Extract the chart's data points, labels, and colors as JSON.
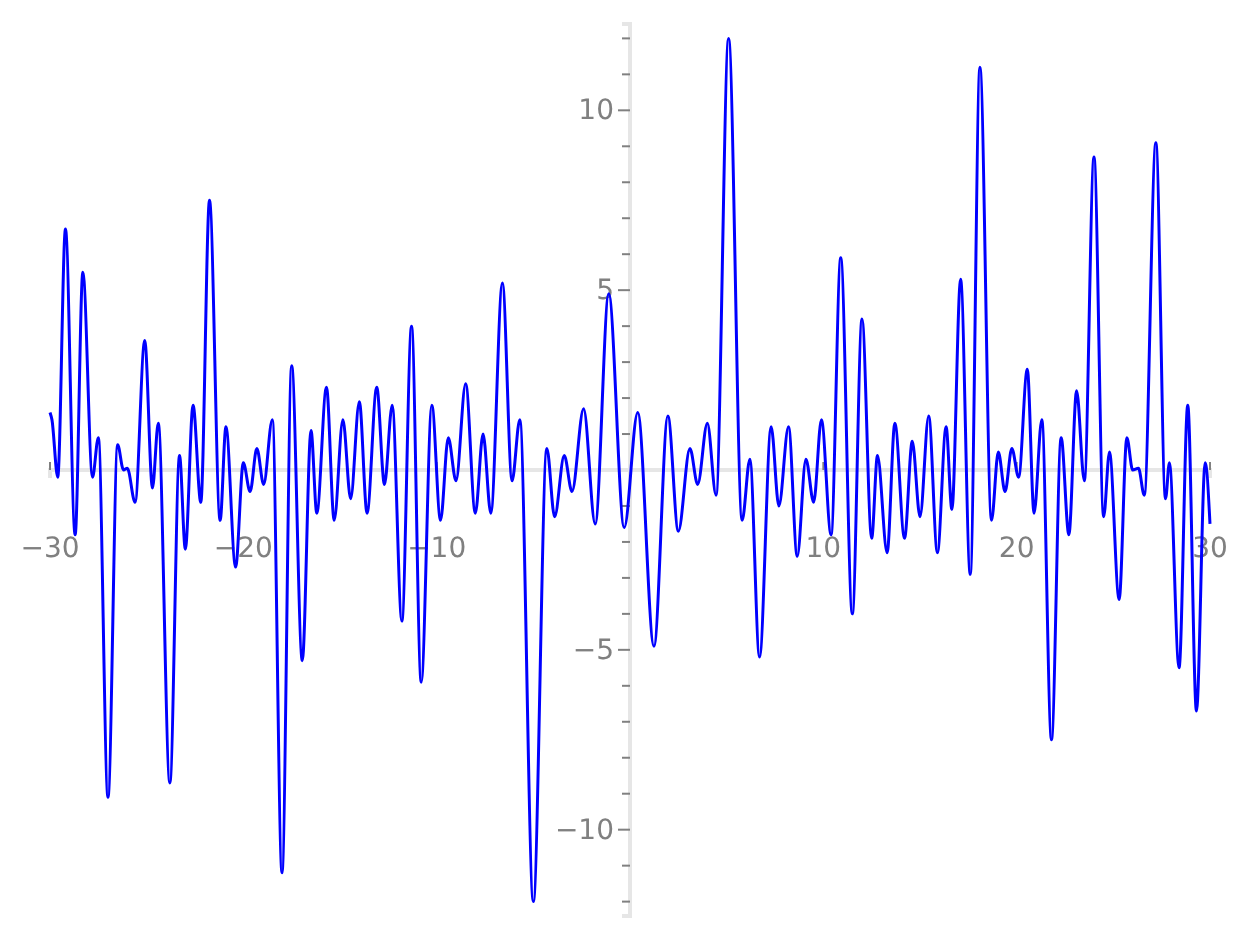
{
  "chart_data": {
    "type": "line",
    "x": [
      -30,
      -29.9,
      -29.6,
      -29.2,
      -28.7,
      -28.3,
      -27.8,
      -27.5,
      -27.0,
      -26.5,
      -26.2,
      -26.0,
      -25.6,
      -25.1,
      -24.7,
      -24.4,
      -23.8,
      -23.3,
      -23.0,
      -22.6,
      -22.2,
      -21.75,
      -21.2,
      -20.9,
      -20.4,
      -20.0,
      -19.65,
      -19.3,
      -18.95,
      -18.5,
      -18.0,
      -17.5,
      -16.95,
      -16.5,
      -16.2,
      -15.7,
      -15.3,
      -14.85,
      -14.45,
      -14.0,
      -13.6,
      -13.1,
      -12.7,
      -12.3,
      -11.8,
      -11.3,
      -10.8,
      -10.25,
      -9.8,
      -9.4,
      -9.0,
      -8.5,
      -8.0,
      -7.6,
      -7.2,
      -6.6,
      -6.1,
      -5.7,
      -5.0,
      -4.3,
      -3.9,
      -3.4,
      -3.0,
      -2.4,
      -1.8,
      -1.1,
      -0.3,
      0.4,
      1.24,
      1.96,
      2.5,
      3.1,
      3.5,
      4.0,
      4.45,
      5.1,
      5.8,
      6.2,
      6.7,
      7.3,
      7.7,
      8.2,
      8.65,
      9.1,
      9.5,
      9.9,
      10.4,
      10.9,
      11.5,
      12.0,
      12.5,
      12.8,
      13.3,
      13.7,
      14.2,
      14.6,
      15.0,
      15.45,
      15.9,
      16.35,
      16.65,
      17.1,
      17.6,
      18.1,
      18.7,
      19.05,
      19.4,
      19.75,
      20.1,
      20.55,
      20.9,
      21.3,
      21.8,
      22.3,
      22.7,
      23.1,
      23.5,
      24.0,
      24.5,
      24.8,
      25.3,
      25.7,
      26.0,
      26.3,
      26.6,
      27.2,
      27.7,
      27.9,
      28.4,
      28.85,
      29.3,
      29.75,
      30.0
    ],
    "series": [
      {
        "color": "#0000ff",
        "values": [
          1.6,
          1.4,
          -0.2,
          6.7,
          -1.8,
          5.5,
          -0.2,
          0.9,
          -9.1,
          0.7,
          0,
          0.05,
          -0.9,
          3.6,
          -0.5,
          1.3,
          -8.7,
          0.4,
          -2.2,
          1.8,
          -0.9,
          7.5,
          -1.4,
          1.2,
          -2.7,
          0.2,
          -0.6,
          0.6,
          -0.4,
          1.4,
          -11.2,
          2.9,
          -5.3,
          1.1,
          -1.2,
          2.3,
          -1.4,
          1.4,
          -0.8,
          1.9,
          -1.2,
          2.3,
          -0.4,
          1.8,
          -4.2,
          4.0,
          -5.9,
          1.8,
          -1.4,
          0.9,
          -0.3,
          2.4,
          -1.2,
          1.0,
          -1.2,
          5.2,
          -0.3,
          1.4,
          -12.0,
          0.6,
          -1.3,
          0.4,
          -0.6,
          1.7,
          -1.5,
          4.9,
          -1.6,
          1.6,
          -4.9,
          1.5,
          -1.7,
          0.6,
          -0.4,
          1.3,
          -0.7,
          12.0,
          -1.4,
          0.3,
          -5.2,
          1.2,
          -1.0,
          1.2,
          -2.4,
          0.3,
          -0.9,
          1.4,
          -1.8,
          5.9,
          -4.0,
          4.2,
          -1.9,
          0.4,
          -2.3,
          1.3,
          -1.9,
          0.8,
          -1.3,
          1.5,
          -2.3,
          1.2,
          -1.1,
          5.3,
          -2.9,
          11.2,
          -1.4,
          0.5,
          -0.6,
          0.6,
          -0.2,
          2.8,
          -1.2,
          1.4,
          -7.5,
          0.9,
          -1.8,
          2.2,
          -0.3,
          8.7,
          -1.3,
          0.5,
          -3.6,
          0.9,
          0,
          0.05,
          -0.7,
          9.1,
          -0.8,
          0.2,
          -5.5,
          1.8,
          -6.7,
          0.2,
          -1.5
        ]
      }
    ],
    "xlim": [
      -30,
      30
    ],
    "ylim": [
      -12.4,
      12.4
    ],
    "xticks": [
      {
        "value": -30,
        "label": "−30"
      },
      {
        "value": -20,
        "label": "−20"
      },
      {
        "value": -10,
        "label": "−10"
      },
      10,
      20,
      30
    ],
    "yticks": [
      {
        "value": -12,
        "label": null
      },
      {
        "value": -11,
        "label": null
      },
      {
        "value": -10,
        "label": "−10"
      },
      {
        "value": -9,
        "label": null
      },
      {
        "value": -8,
        "label": null
      },
      {
        "value": -7,
        "label": null
      },
      {
        "value": -6,
        "label": null
      },
      {
        "value": -5,
        "label": "−5"
      },
      {
        "value": -4,
        "label": null
      },
      {
        "value": -3,
        "label": null
      },
      {
        "value": -2,
        "label": null
      },
      {
        "value": -1,
        "label": null
      },
      {
        "value": 1,
        "label": null
      },
      {
        "value": 2,
        "label": null
      },
      {
        "value": 3,
        "label": null
      },
      {
        "value": 4,
        "label": null
      },
      5,
      {
        "value": 6,
        "label": null
      },
      {
        "value": 7,
        "label": null
      },
      {
        "value": 8,
        "label": null
      },
      {
        "value": 9,
        "label": null
      },
      10,
      {
        "value": 11,
        "label": null
      },
      {
        "value": 12,
        "label": null
      }
    ],
    "grid": false,
    "line_style": "solid",
    "marker": "none"
  }
}
